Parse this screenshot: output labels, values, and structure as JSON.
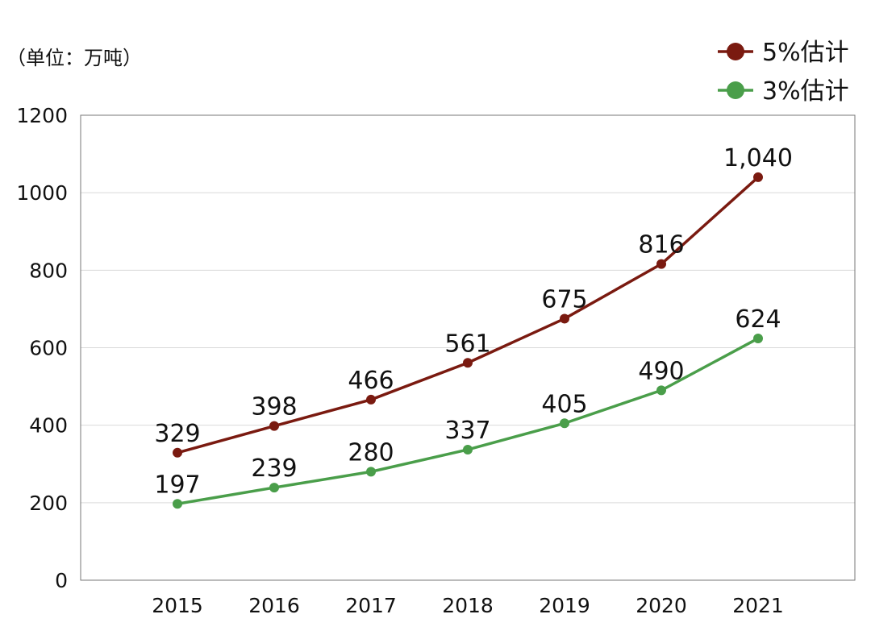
{
  "chart_data": {
    "type": "line",
    "unit_label": "（单位：万吨）",
    "categories": [
      "2015",
      "2016",
      "2017",
      "2018",
      "2019",
      "2020",
      "2021"
    ],
    "series": [
      {
        "name": "5%估计",
        "color": "#7a1a10",
        "values": [
          329,
          398,
          466,
          561,
          675,
          816,
          1040
        ],
        "labels": [
          "329",
          "398",
          "466",
          "561",
          "675",
          "816",
          "1,040"
        ]
      },
      {
        "name": "3%估计",
        "color": "#4a9e4a",
        "values": [
          197,
          239,
          280,
          337,
          405,
          490,
          624
        ],
        "labels": [
          "197",
          "239",
          "280",
          "337",
          "405",
          "490",
          "624"
        ]
      }
    ],
    "ylim": [
      0,
      1200
    ],
    "yticks": [
      0,
      200,
      400,
      600,
      800,
      1000,
      1200
    ],
    "grid": true,
    "legend_position": "top-right"
  }
}
